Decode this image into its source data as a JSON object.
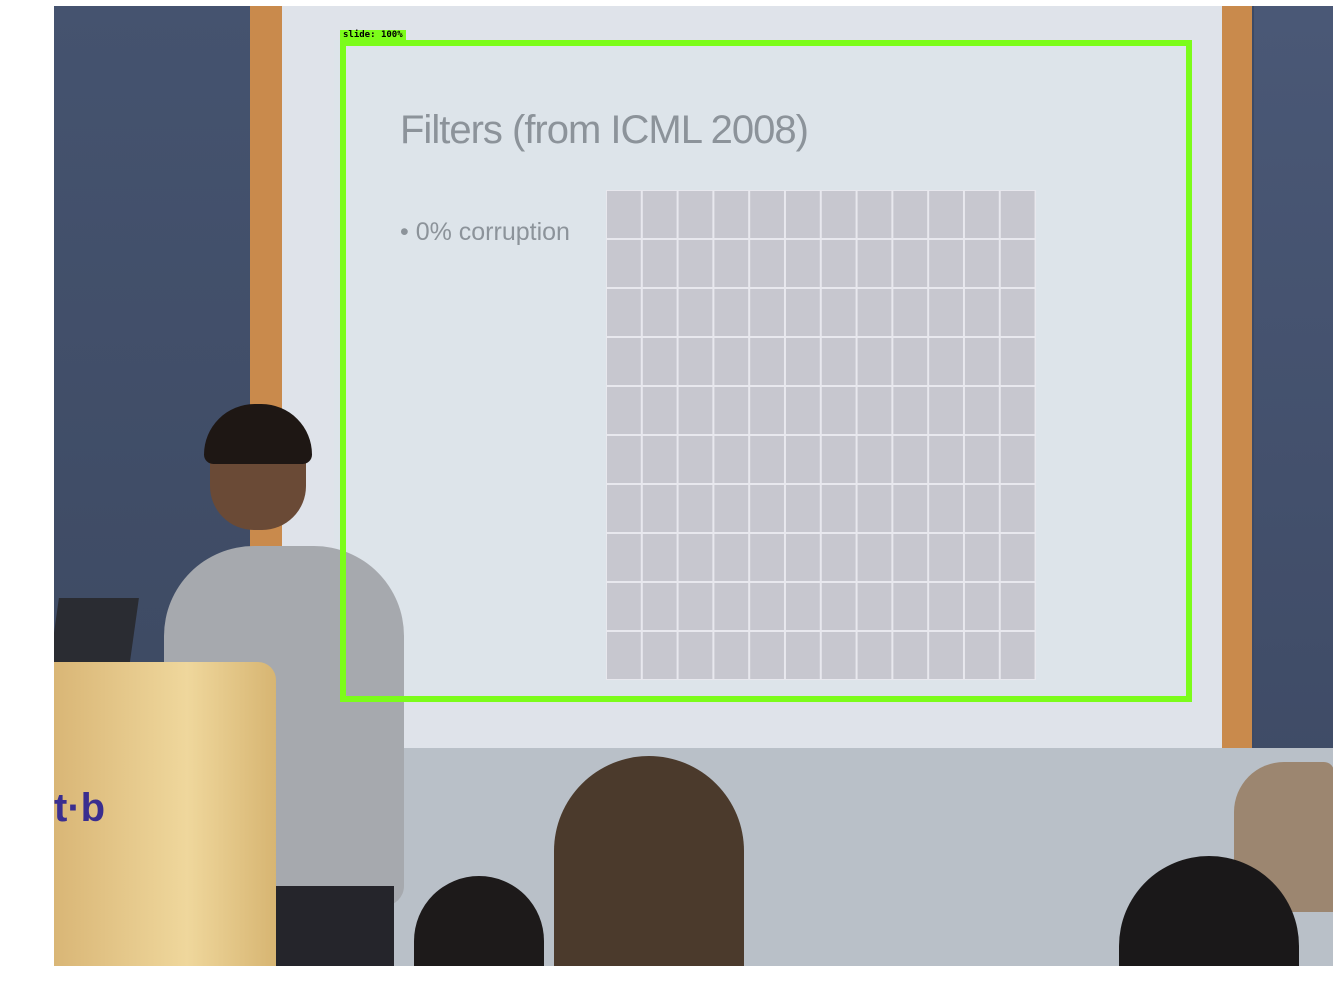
{
  "detection": {
    "label": "slide",
    "confidence_label": "100%",
    "box_color": "#7cfc1a"
  },
  "slide": {
    "title": "Filters (from ICML 2008)",
    "bullet": "• 0% corruption"
  },
  "podium": {
    "logo_text": "t·b"
  }
}
